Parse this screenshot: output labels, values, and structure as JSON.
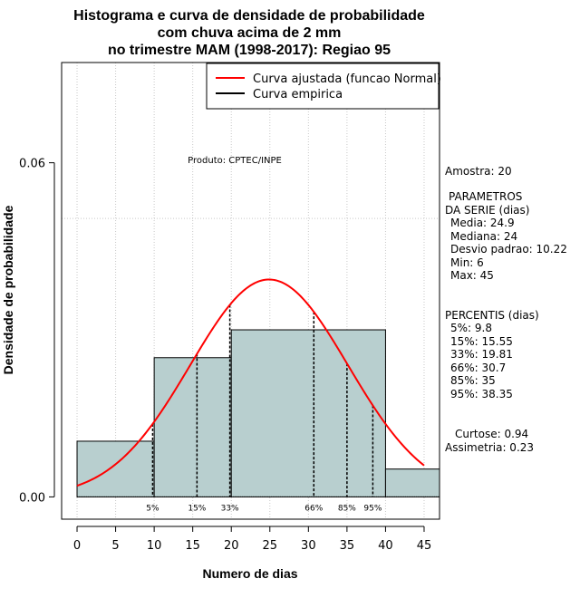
{
  "chart_data": {
    "type": "bar",
    "title_lines": [
      "Histograma e curva de densidade de probabilidade",
      "com chuva acima de 2 mm",
      "no trimestre MAM (1998-2017): Regiao 95"
    ],
    "xlabel": "Numero de dias",
    "ylabel": "Densidade de probabilidade",
    "xlim": [
      -2,
      47
    ],
    "ylim": [
      -0.004,
      0.078
    ],
    "x_ticks": [
      0,
      5,
      10,
      15,
      20,
      25,
      30,
      35,
      40,
      45
    ],
    "y_ticks": [
      0.0,
      0.06
    ],
    "y_tick_labels": [
      "0.00",
      "0.06"
    ],
    "hline": 0.05,
    "bins": [
      {
        "x0": 0,
        "x1": 10,
        "value": 0.01
      },
      {
        "x0": 10,
        "x1": 20,
        "value": 0.025
      },
      {
        "x0": 20,
        "x1": 40,
        "value": 0.03
      },
      {
        "x0": 40,
        "x1": 47,
        "value": 0.005
      }
    ],
    "normal_curve": {
      "mean": 24.9,
      "sd": 10.22,
      "x_from": 0,
      "x_to": 45
    },
    "percentiles": [
      {
        "label": "5%",
        "value": 9.8
      },
      {
        "label": "15%",
        "value": 15.55
      },
      {
        "label": "33%",
        "value": 19.81
      },
      {
        "label": "66%",
        "value": 30.7
      },
      {
        "label": "85%",
        "value": 35
      },
      {
        "label": "95%",
        "value": 38.35
      }
    ],
    "legend": [
      {
        "label": "Curva ajustada (funcao Normal)",
        "color": "#ff0000"
      },
      {
        "label": "Curva empirica",
        "color": "#000000"
      }
    ],
    "product_label": "Produto: CPTEC/INPE",
    "bar_color": "#b8cfcf",
    "curve_color": "#ff0000"
  },
  "side_panel": {
    "sample": "Amostra: 20",
    "params_title_1": "PARAMETROS",
    "params_title_2": "DA SERIE (dias)",
    "media": "Media: 24.9",
    "mediana": "Mediana: 24",
    "desvio": "Desvio padrao: 10.22",
    "min": "Min: 6",
    "max": "Max: 45",
    "percentis_title": "PERCENTIS (dias)",
    "p5": "5%: 9.8",
    "p15": "15%: 15.55",
    "p33": "33%: 19.81",
    "p66": "66%: 30.7",
    "p85": "85%: 35",
    "p95": "95%: 38.35",
    "curtose": "Curtose: 0.94",
    "assimetria": "Assimetria: 0.23"
  }
}
